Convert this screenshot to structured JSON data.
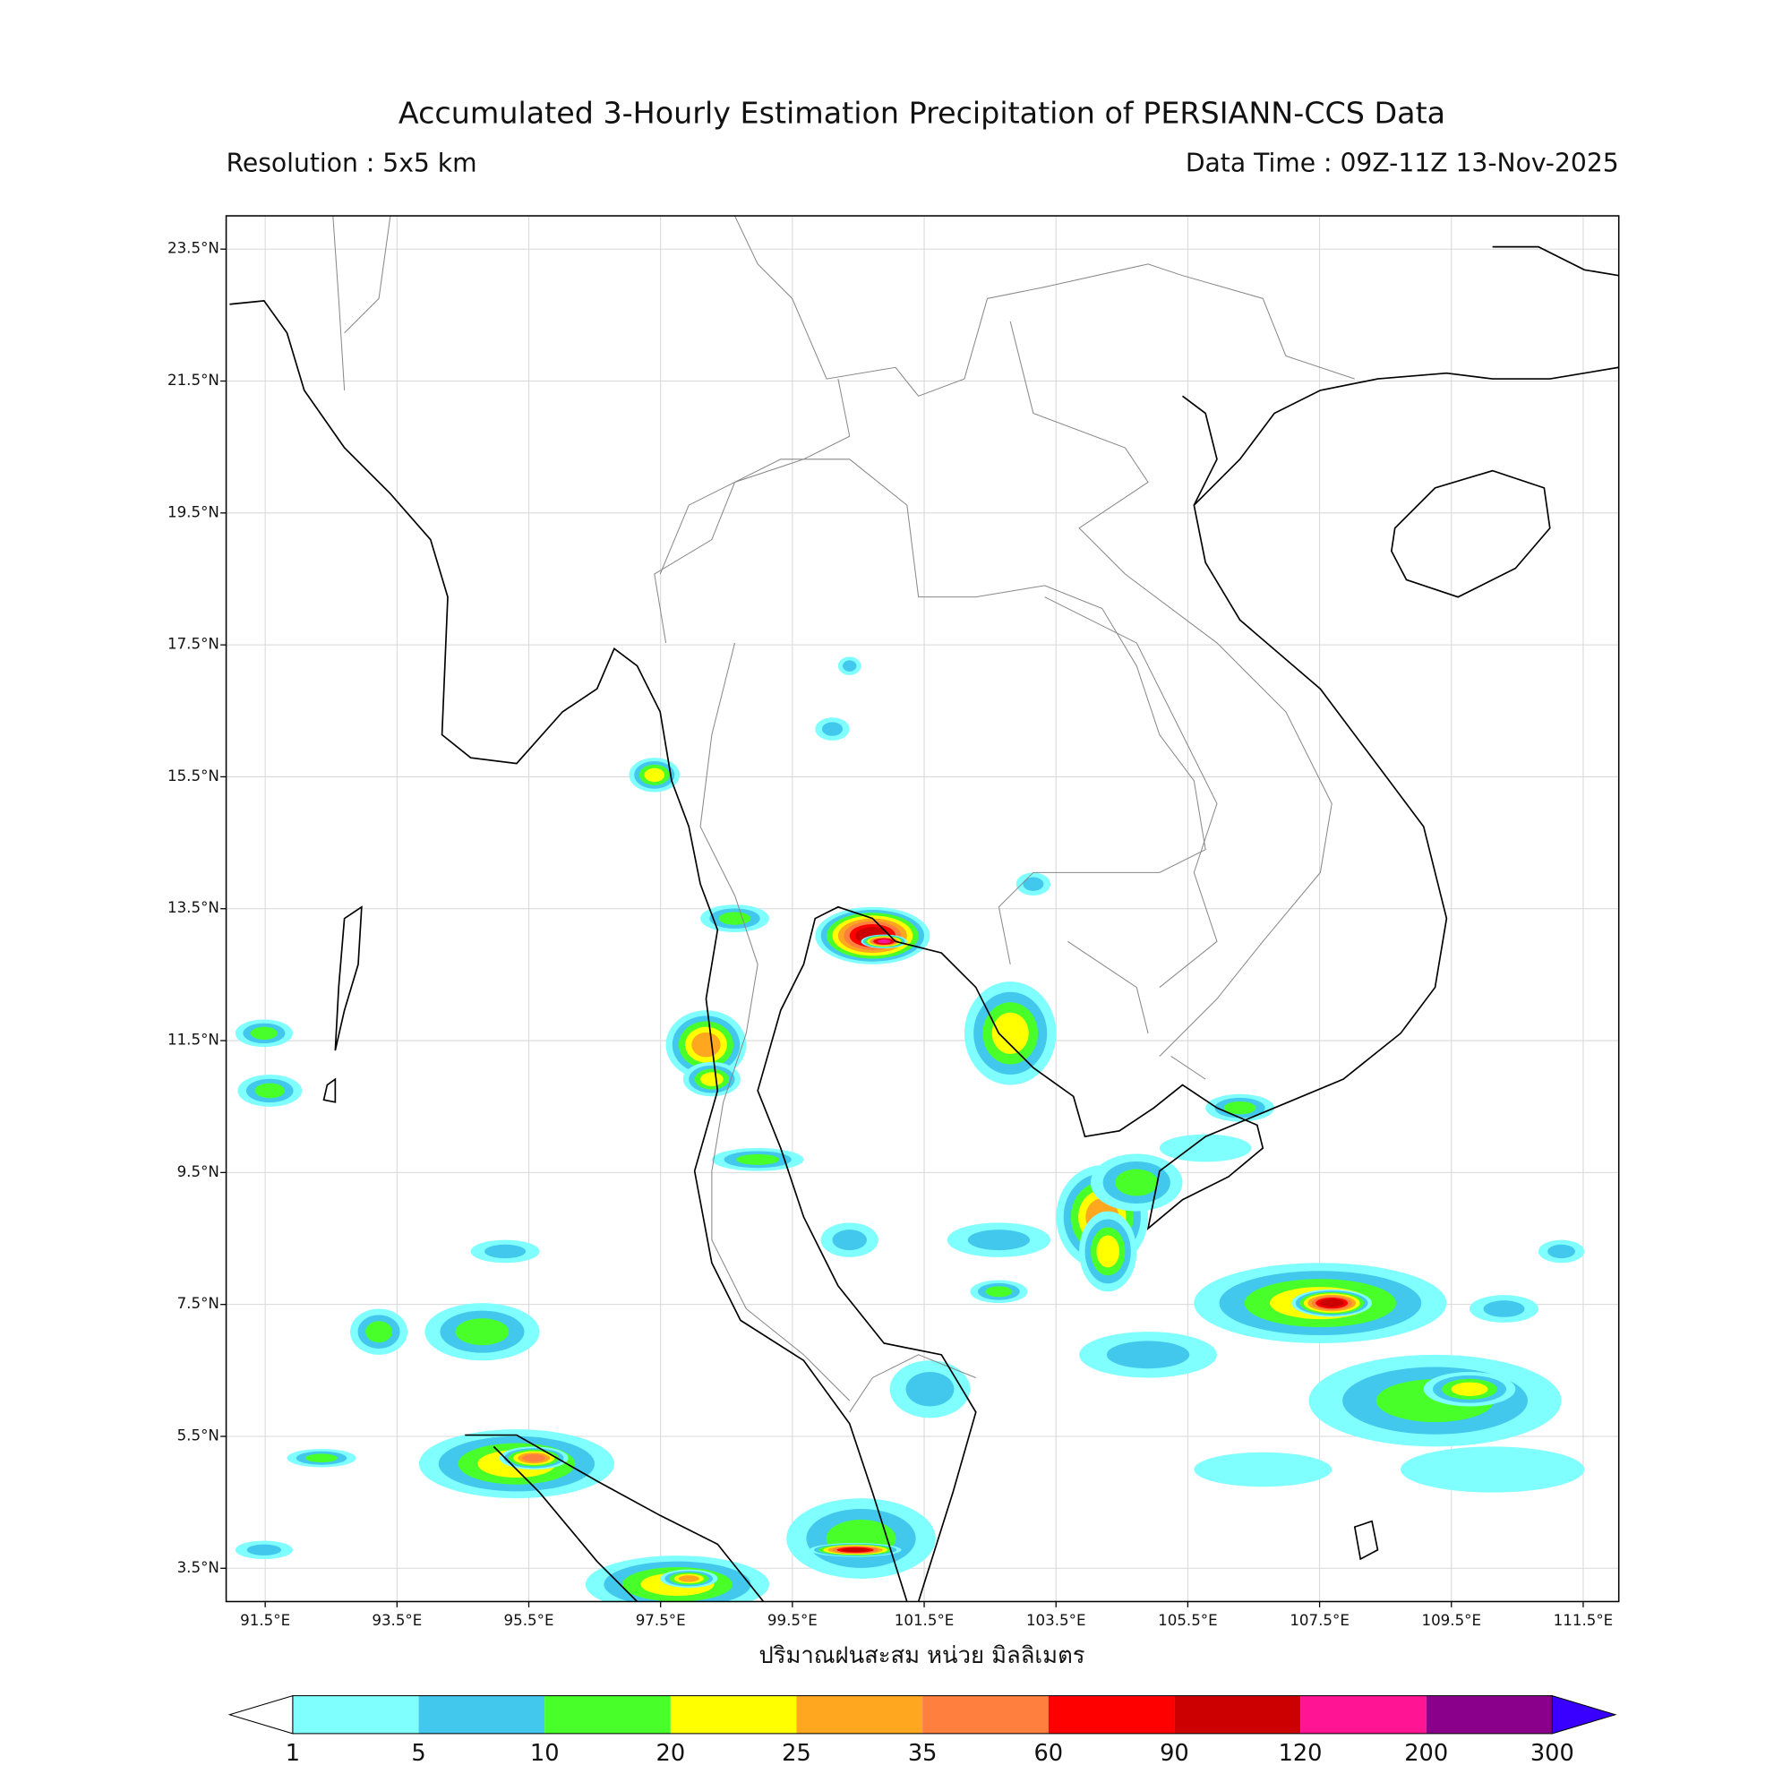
{
  "header": {
    "title": "Accumulated 3-Hourly Estimation Precipitation of PERSIANN-CCS Data",
    "resolution": "Resolution : 5x5 km",
    "data_time": "Data Time : 09Z-11Z 13-Nov-2025"
  },
  "map": {
    "lat_ticks": [
      {
        "value": 23.5,
        "label": "23.5°N"
      },
      {
        "value": 21.5,
        "label": "21.5°N"
      },
      {
        "value": 19.5,
        "label": "19.5°N"
      },
      {
        "value": 17.5,
        "label": "17.5°N"
      },
      {
        "value": 15.5,
        "label": "15.5°N"
      },
      {
        "value": 13.5,
        "label": "13.5°N"
      },
      {
        "value": 11.5,
        "label": "11.5°N"
      },
      {
        "value": 9.5,
        "label": "9.5°N"
      },
      {
        "value": 7.5,
        "label": "7.5°N"
      },
      {
        "value": 5.5,
        "label": "5.5°N"
      },
      {
        "value": 3.5,
        "label": "3.5°N"
      }
    ],
    "lon_ticks": [
      {
        "value": 91.5,
        "label": "91.5°E"
      },
      {
        "value": 93.5,
        "label": "93.5°E"
      },
      {
        "value": 95.5,
        "label": "95.5°E"
      },
      {
        "value": 97.5,
        "label": "97.5°E"
      },
      {
        "value": 99.5,
        "label": "99.5°E"
      },
      {
        "value": 101.5,
        "label": "101.5°E"
      },
      {
        "value": 103.5,
        "label": "103.5°E"
      },
      {
        "value": 105.5,
        "label": "105.5°E"
      },
      {
        "value": 107.5,
        "label": "107.5°E"
      },
      {
        "value": 109.5,
        "label": "109.5°E"
      },
      {
        "value": 111.5,
        "label": "111.5°E"
      }
    ],
    "grid": true,
    "xlabel": "ปริมาณฝนสะสม หน่วย มิลลิเมตร"
  },
  "colorbar": {
    "levels": [
      1,
      5,
      10,
      20,
      25,
      35,
      60,
      90,
      120,
      200,
      300
    ],
    "colors": [
      "#80ffff",
      "#41c8ec",
      "#49ff2a",
      "#ffff00",
      "#ffa71f",
      "#ff7f3f",
      "#ff0000",
      "#cc0000",
      "#ff1493",
      "#8b008b"
    ],
    "under_color": "#ffffff",
    "over_color": "#3a00ff"
  }
}
